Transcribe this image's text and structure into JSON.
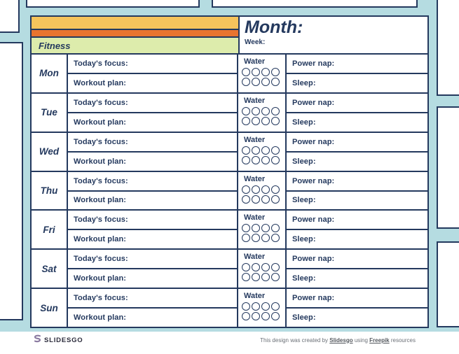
{
  "theme": {
    "background_teal": "#b5dce1",
    "navy": "#24395e",
    "bar_yellow": "#f6c45c",
    "bar_orange": "#e8742f",
    "bar_green": "#ddecac",
    "logo_purple": "#8a7aa0",
    "credit_gray": "#6b7077",
    "card_white": "#ffffff"
  },
  "header": {
    "category_label": "Fitness",
    "month_label": "Month:",
    "week_label": "Week:"
  },
  "planner": {
    "days": [
      "Mon",
      "Tue",
      "Wed",
      "Thu",
      "Fri",
      "Sat",
      "Sun"
    ],
    "labels": {
      "focus": "Today's focus:",
      "workout": "Workout plan:",
      "water": "Water",
      "power_nap": "Power nap:",
      "sleep": "Sleep:"
    },
    "water_tracker": {
      "rows": 2,
      "circles_per_row": 4
    }
  },
  "footer": {
    "logo_text": "SLIDESGO",
    "credit": {
      "prefix": "This design was created by ",
      "slidesgo_link": "Slidesgo",
      "middle": " using ",
      "freepik_link": "Freepik",
      "suffix": " resources"
    }
  }
}
